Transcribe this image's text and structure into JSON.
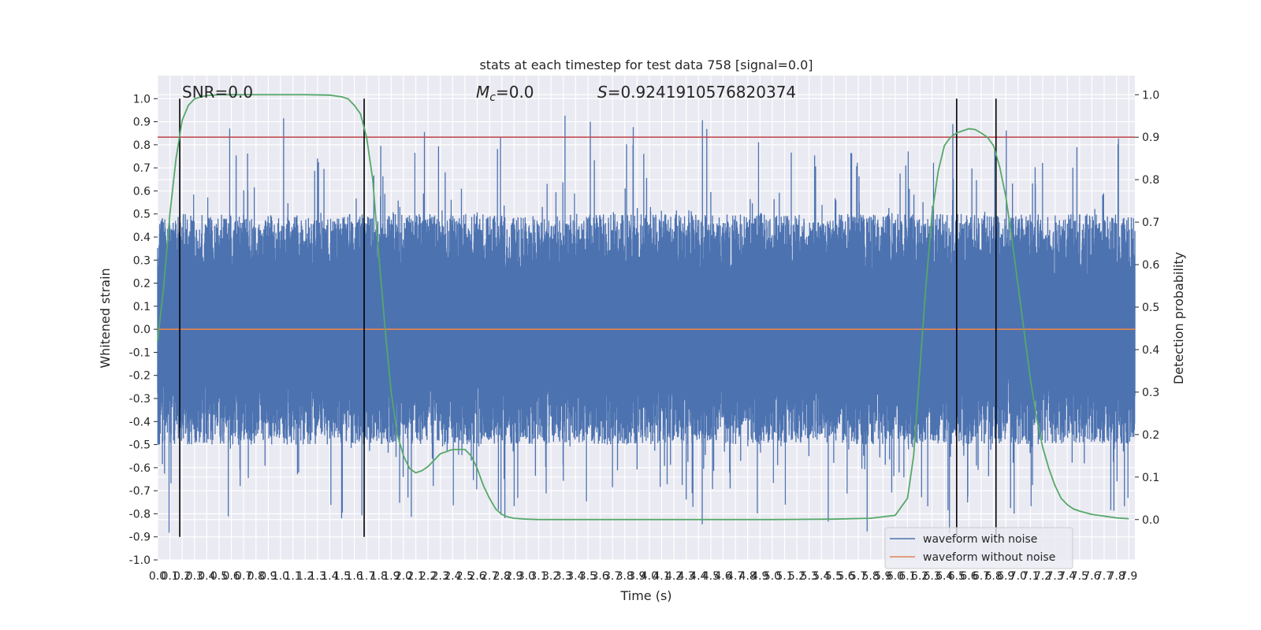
{
  "chart_data": {
    "type": "line",
    "title": "stats at each timestep for test data 758 [signal=0.0]",
    "xlabel": "Time (s)",
    "ylabel": "Whitened strain",
    "y2label": "Detection probability",
    "xlim": [
      0.0,
      7.95
    ],
    "ylim": [
      -1.0,
      1.1
    ],
    "y2lim": [
      -0.095,
      1.045
    ],
    "x_tick_step": 0.1,
    "y_ticks": [
      "-1.0",
      "-0.9",
      "-0.8",
      "-0.7",
      "-0.6",
      "-0.5",
      "-0.4",
      "-0.3",
      "-0.2",
      "-0.1",
      "0.0",
      "0.1",
      "0.2",
      "0.3",
      "0.4",
      "0.5",
      "0.6",
      "0.7",
      "0.8",
      "0.9",
      "1.0"
    ],
    "y2_ticks": [
      "0.0",
      "0.1",
      "0.2",
      "0.3",
      "0.4",
      "0.5",
      "0.6",
      "0.7",
      "0.8",
      "0.9",
      "1.0"
    ],
    "grid": true,
    "legend_position": "lower-right",
    "annotations": {
      "snr": "SNR=0.0",
      "mc_symbol": "M",
      "mc_sub": "c",
      "mc_value": "=0.0",
      "s_symbol": "S",
      "s_value": "=0.9241910576820374"
    },
    "threshold": {
      "value": 0.9,
      "axis": "right",
      "color": "#c44e52"
    },
    "vlines": [
      {
        "x": 0.18,
        "ymin": -0.9,
        "ymax": 1.0
      },
      {
        "x": 1.68,
        "ymin": -0.9,
        "ymax": 1.0
      },
      {
        "x": 6.5,
        "ymin": -0.9,
        "ymax": 1.0
      },
      {
        "x": 6.82,
        "ymin": -0.9,
        "ymax": 1.0
      }
    ],
    "series": [
      {
        "name": "waveform with noise",
        "color": "#4c72b0",
        "kind": "noise-band",
        "n_samples": 4096,
        "typical_abs_range": [
          0.2,
          0.5
        ],
        "max": 1.0,
        "min": -0.9
      },
      {
        "name": "waveform without noise",
        "color": "#dd8452",
        "x": [
          0.0,
          7.95
        ],
        "values": [
          0.0,
          0.0
        ]
      },
      {
        "color": "#55a868",
        "axis": "right",
        "x": [
          0.0,
          0.05,
          0.1,
          0.15,
          0.2,
          0.25,
          0.3,
          0.35,
          0.4,
          0.5,
          0.6,
          0.8,
          1.0,
          1.2,
          1.4,
          1.5,
          1.55,
          1.6,
          1.65,
          1.7,
          1.75,
          1.8,
          1.85,
          1.9,
          1.95,
          2.0,
          2.05,
          2.1,
          2.15,
          2.2,
          2.25,
          2.3,
          2.4,
          2.5,
          2.55,
          2.6,
          2.65,
          2.7,
          2.75,
          2.8,
          2.85,
          2.9,
          2.95,
          3.0,
          3.1,
          3.2,
          3.4,
          3.6,
          4.0,
          4.5,
          5.0,
          5.5,
          5.8,
          6.0,
          6.1,
          6.15,
          6.2,
          6.25,
          6.3,
          6.35,
          6.4,
          6.45,
          6.5,
          6.55,
          6.6,
          6.65,
          6.7,
          6.75,
          6.8,
          6.85,
          6.9,
          6.95,
          7.0,
          7.05,
          7.1,
          7.15,
          7.2,
          7.25,
          7.3,
          7.35,
          7.4,
          7.45,
          7.5,
          7.6,
          7.7,
          7.8,
          7.9
        ],
        "values": [
          0.42,
          0.55,
          0.72,
          0.85,
          0.94,
          0.975,
          0.99,
          0.995,
          0.998,
          1.0,
          1.0,
          1.0,
          1.0,
          1.0,
          0.999,
          0.995,
          0.99,
          0.975,
          0.955,
          0.9,
          0.8,
          0.62,
          0.45,
          0.3,
          0.2,
          0.15,
          0.12,
          0.11,
          0.115,
          0.125,
          0.14,
          0.155,
          0.165,
          0.165,
          0.15,
          0.12,
          0.08,
          0.05,
          0.025,
          0.012,
          0.006,
          0.003,
          0.002,
          0.001,
          0.0,
          0.0,
          0.0,
          0.0,
          0.0,
          0.0,
          0.0,
          0.001,
          0.003,
          0.01,
          0.05,
          0.15,
          0.35,
          0.55,
          0.72,
          0.82,
          0.88,
          0.9,
          0.91,
          0.915,
          0.92,
          0.918,
          0.91,
          0.9,
          0.88,
          0.83,
          0.76,
          0.66,
          0.55,
          0.44,
          0.33,
          0.24,
          0.17,
          0.12,
          0.08,
          0.05,
          0.035,
          0.025,
          0.02,
          0.012,
          0.008,
          0.004,
          0.002
        ]
      }
    ]
  }
}
